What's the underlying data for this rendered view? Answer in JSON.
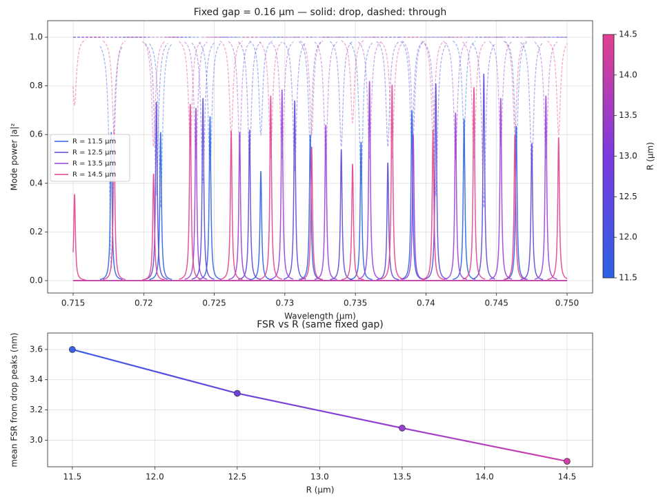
{
  "chart_data": [
    {
      "type": "spectrum",
      "title": "Fixed gap = 0.16 µm — solid: drop, dashed: through",
      "x_label": "Wavelength (µm)",
      "y_label": "Mode power |a|²",
      "xlim": [
        0.71319,
        0.75181
      ],
      "ylim": [
        -0.051,
        1.068
      ],
      "xticks": [
        0.715,
        0.72,
        0.725,
        0.73,
        0.735,
        0.74,
        0.745,
        {
          "value": 0.75,
          "label": "0.750"
        }
      ],
      "yticks": [
        {
          "value": 0,
          "label": "0.0"
        },
        0.2,
        0.4,
        0.6,
        0.8,
        {
          "value": 1,
          "label": "1.0"
        }
      ],
      "grid": true,
      "legend": "left",
      "series": [
        {
          "name": "R = 11.5 µm",
          "color": "#2c62e6",
          "peaks": [
            0.7177,
            0.7212,
            0.7247,
            0.7283,
            0.7318,
            0.7354,
            0.739,
            0.7427,
            0.7464
          ],
          "values": [
            0.61,
            0.61,
            0.675,
            0.45,
            0.6,
            0.57,
            0.7,
            0.665,
            0.635
          ],
          "through_values": [
            0.05,
            0.3,
            0.45,
            0.6,
            0.55,
            0.4,
            0.55,
            0.6,
            0.55
          ]
        },
        {
          "name": "R = 12.5 µm",
          "color": "#5b48d8",
          "peaks": [
            0.7209,
            0.7242,
            0.7275,
            0.7307,
            0.734,
            0.7373,
            0.7407,
            0.7441,
            0.7475
          ],
          "values": [
            0.735,
            0.75,
            0.62,
            0.74,
            0.54,
            0.485,
            0.81,
            0.85,
            0.565
          ],
          "through_values": [
            0.35,
            0.4,
            0.5,
            0.45,
            0.55,
            0.55,
            0.35,
            0.3,
            0.45
          ]
        },
        {
          "name": "R = 13.5 µm",
          "color": "#9a3fd8",
          "peaks": [
            0.7237,
            0.7268,
            0.7298,
            0.7329,
            0.736,
            0.7391,
            0.7421,
            0.7453,
            0.7485
          ],
          "values": [
            0.71,
            0.61,
            0.785,
            0.64,
            0.82,
            0.6,
            0.69,
            0.75,
            0.76
          ],
          "through_values": [
            0.5,
            0.55,
            0.5,
            0.5,
            0.5,
            0.6,
            0.5,
            0.55,
            0.5
          ]
        },
        {
          "name": "R = 14.5 µm",
          "color": "#e2408e",
          "peaks": [
            0.7151,
            0.7179,
            0.7207,
            0.7233,
            0.7262,
            0.729,
            0.7319,
            0.7348,
            0.7376,
            0.7405,
            0.7434,
            0.7463,
            0.7494
          ],
          "values": [
            0.355,
            0.61,
            0.44,
            0.725,
            0.615,
            0.76,
            0.55,
            0.48,
            0.805,
            0.62,
            0.795,
            0.6,
            0.59
          ],
          "through_values": [
            0.72,
            0.6,
            0.55,
            0.55,
            0.6,
            0.5,
            0.6,
            0.65,
            0.5,
            0.6,
            0.5,
            0.6,
            0.6
          ]
        }
      ],
      "colorbar": {
        "label": "R (µm)",
        "lim": [
          11.5,
          14.5
        ],
        "ticks": [
          11.5,
          {
            "value": 12,
            "label": "12.0"
          },
          12.5,
          {
            "value": 13,
            "label": "13.0"
          },
          13.5,
          {
            "value": 14,
            "label": "14.0"
          },
          14.5
        ],
        "colors": [
          "#2c62e6",
          "#7b3ae0",
          "#e2408e"
        ]
      }
    },
    {
      "type": "line",
      "title": "FSR vs R (same fixed gap)",
      "x_label": "R (µm)",
      "y_label": "mean FSR from drop peaks (nm)",
      "x": [
        11.5,
        12.5,
        13.5,
        14.5
      ],
      "values": [
        3.6,
        3.31,
        3.08,
        2.86
      ],
      "colors": [
        "#3a5ee8",
        "#6a45d8",
        "#9a40d0",
        "#d040a8"
      ],
      "xlim": [
        11.35,
        14.655
      ],
      "ylim": [
        2.824,
        3.709
      ],
      "xticks": [
        11.5,
        {
          "value": 12,
          "label": "12.0"
        },
        12.5,
        {
          "value": 13,
          "label": "13.0"
        },
        13.5,
        {
          "value": 14,
          "label": "14.0"
        },
        14.5
      ],
      "yticks": [
        {
          "value": 3,
          "label": "3.0"
        },
        3.2,
        3.4,
        3.6
      ],
      "grid": true
    }
  ]
}
